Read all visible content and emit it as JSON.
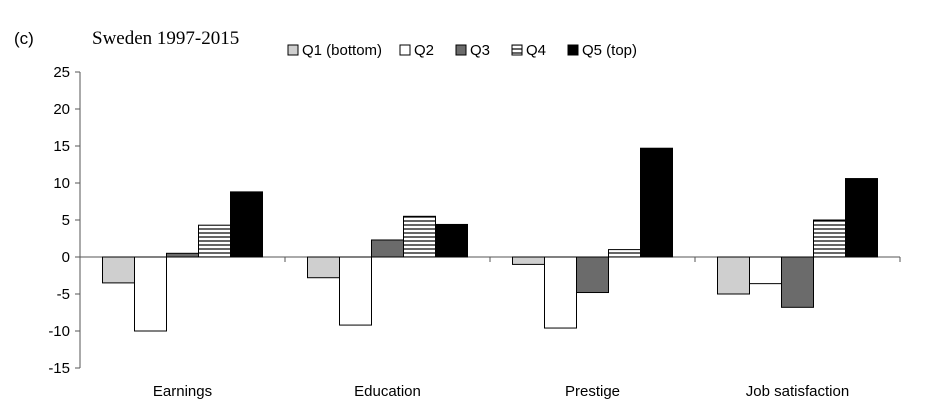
{
  "panel_label": "(c)",
  "chart_data": {
    "type": "bar",
    "title": "Sweden 1997-2015",
    "xlabel": "",
    "ylabel": "",
    "categories": [
      "Earnings",
      "Education",
      "Prestige",
      "Job satisfaction"
    ],
    "ylim": [
      -15,
      25
    ],
    "yticks": [
      25,
      20,
      15,
      10,
      5,
      0,
      -5,
      -10,
      -15
    ],
    "grid": false,
    "legend_position": "top",
    "series": [
      {
        "name": "Q1 (bottom)",
        "values": [
          -3.5,
          -2.8,
          -1.0,
          -5.0
        ],
        "fill": "#cfcfcf",
        "pattern": "solid"
      },
      {
        "name": "Q2",
        "values": [
          -10.0,
          -9.2,
          -9.6,
          -3.6
        ],
        "fill": "#ffffff",
        "pattern": "solid"
      },
      {
        "name": "Q3",
        "values": [
          0.5,
          2.3,
          -4.8,
          -6.8
        ],
        "fill": "#6b6b6b",
        "pattern": "solid"
      },
      {
        "name": "Q4",
        "values": [
          4.3,
          5.5,
          1.0,
          5.0
        ],
        "fill": "#ffffff",
        "pattern": "hstripes"
      },
      {
        "name": "Q5 (top)",
        "values": [
          8.8,
          4.4,
          14.7,
          10.6
        ],
        "fill": "#000000",
        "pattern": "solid"
      }
    ]
  }
}
